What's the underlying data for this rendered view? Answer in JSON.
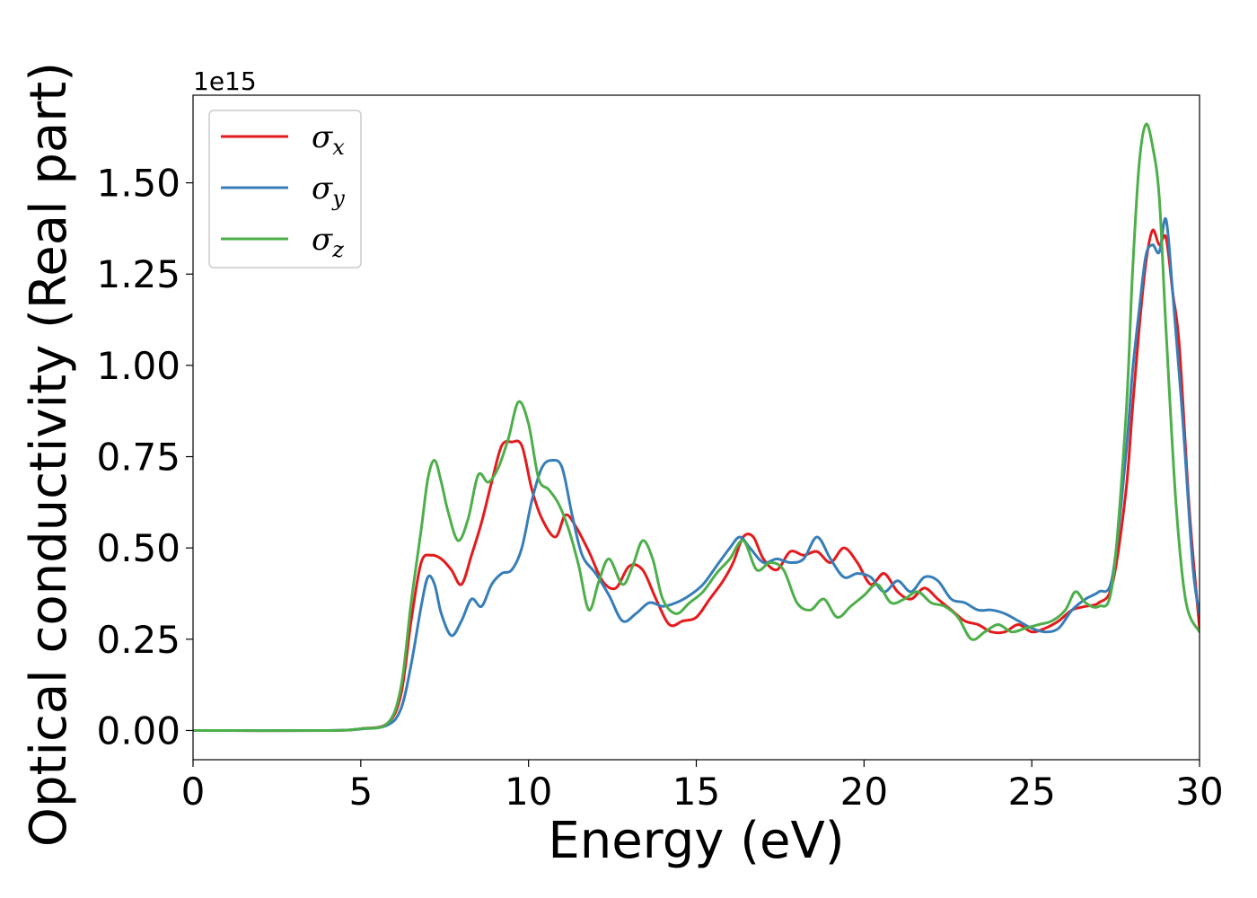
{
  "chart_data": {
    "type": "line",
    "xlabel": "Energy (eV)",
    "ylabel": "Optical conductivity (Real part)",
    "y_offset_text": "1e15",
    "xlim": [
      0,
      30
    ],
    "ylim": [
      -0.08,
      1.74
    ],
    "xticks": [
      0,
      5,
      10,
      15,
      20,
      25,
      30
    ],
    "xtick_labels": [
      "0",
      "5",
      "10",
      "15",
      "20",
      "25",
      "30"
    ],
    "yticks": [
      0.0,
      0.25,
      0.5,
      0.75,
      1.0,
      1.25,
      1.5
    ],
    "ytick_labels": [
      "0.00",
      "0.25",
      "0.50",
      "0.75",
      "1.00",
      "1.25",
      "1.50"
    ],
    "grid": false,
    "legend_position": "top-left",
    "series": [
      {
        "name": "σx",
        "symbol": "σ",
        "subscript": "x",
        "color": "#e41a1c",
        "x": [
          0,
          4,
          5,
          5.8,
          6.2,
          6.5,
          6.8,
          7.1,
          7.4,
          7.7,
          8.0,
          8.3,
          8.6,
          8.9,
          9.2,
          9.5,
          9.8,
          10.1,
          10.4,
          10.8,
          11.1,
          11.4,
          11.8,
          12.2,
          12.6,
          13.0,
          13.4,
          13.8,
          14.2,
          14.6,
          15.0,
          15.4,
          15.8,
          16.1,
          16.4,
          16.7,
          17.0,
          17.4,
          17.8,
          18.2,
          18.6,
          19.0,
          19.4,
          19.8,
          20.2,
          20.6,
          21.0,
          21.4,
          21.8,
          22.2,
          22.6,
          23.0,
          23.4,
          23.8,
          24.2,
          24.6,
          25.0,
          25.4,
          25.8,
          26.2,
          26.6,
          27.0,
          27.4,
          27.8,
          28.0,
          28.2,
          28.4,
          28.6,
          28.8,
          29.0,
          29.2,
          29.4,
          29.7,
          30.0
        ],
        "y": [
          0.0,
          0.0,
          0.005,
          0.02,
          0.1,
          0.3,
          0.46,
          0.48,
          0.47,
          0.44,
          0.4,
          0.48,
          0.57,
          0.68,
          0.78,
          0.79,
          0.78,
          0.66,
          0.58,
          0.53,
          0.59,
          0.56,
          0.49,
          0.41,
          0.39,
          0.45,
          0.44,
          0.36,
          0.29,
          0.3,
          0.31,
          0.36,
          0.41,
          0.46,
          0.53,
          0.53,
          0.47,
          0.44,
          0.49,
          0.48,
          0.49,
          0.46,
          0.5,
          0.46,
          0.4,
          0.43,
          0.38,
          0.36,
          0.39,
          0.36,
          0.33,
          0.3,
          0.29,
          0.27,
          0.27,
          0.29,
          0.27,
          0.28,
          0.3,
          0.33,
          0.34,
          0.35,
          0.4,
          0.65,
          0.88,
          1.1,
          1.28,
          1.37,
          1.33,
          1.35,
          1.2,
          1.05,
          0.6,
          0.28
        ]
      },
      {
        "name": "σy",
        "symbol": "σ",
        "subscript": "y",
        "color": "#377eb8",
        "x": [
          0,
          4,
          5,
          5.8,
          6.2,
          6.5,
          6.8,
          7.0,
          7.2,
          7.4,
          7.7,
          8.0,
          8.3,
          8.6,
          8.9,
          9.2,
          9.5,
          9.8,
          10.1,
          10.4,
          10.7,
          11.0,
          11.3,
          11.6,
          12.0,
          12.4,
          12.8,
          13.2,
          13.6,
          14.0,
          14.4,
          14.8,
          15.2,
          15.6,
          16.0,
          16.3,
          16.6,
          17.0,
          17.4,
          17.8,
          18.2,
          18.6,
          19.0,
          19.4,
          19.8,
          20.2,
          20.6,
          21.0,
          21.4,
          21.8,
          22.2,
          22.6,
          23.0,
          23.4,
          23.8,
          24.2,
          24.6,
          25.0,
          25.4,
          25.8,
          26.2,
          26.6,
          27.0,
          27.4,
          27.8,
          28.0,
          28.2,
          28.4,
          28.6,
          28.8,
          29.0,
          29.2,
          29.5,
          29.8,
          30.0
        ],
        "y": [
          0.0,
          0.0,
          0.004,
          0.015,
          0.06,
          0.18,
          0.34,
          0.42,
          0.4,
          0.32,
          0.26,
          0.3,
          0.36,
          0.34,
          0.4,
          0.43,
          0.44,
          0.5,
          0.63,
          0.72,
          0.74,
          0.72,
          0.59,
          0.48,
          0.43,
          0.37,
          0.3,
          0.32,
          0.35,
          0.34,
          0.35,
          0.37,
          0.4,
          0.45,
          0.5,
          0.53,
          0.5,
          0.46,
          0.47,
          0.46,
          0.47,
          0.53,
          0.47,
          0.42,
          0.43,
          0.42,
          0.38,
          0.41,
          0.38,
          0.42,
          0.41,
          0.36,
          0.35,
          0.33,
          0.33,
          0.32,
          0.3,
          0.28,
          0.27,
          0.28,
          0.33,
          0.36,
          0.38,
          0.42,
          0.75,
          0.98,
          1.15,
          1.3,
          1.33,
          1.31,
          1.4,
          1.2,
          0.85,
          0.45,
          0.32
        ]
      },
      {
        "name": "σz",
        "symbol": "σ",
        "subscript": "z",
        "color": "#4daf4a",
        "x": [
          0,
          4,
          5,
          5.8,
          6.2,
          6.5,
          6.8,
          7.0,
          7.2,
          7.4,
          7.6,
          7.9,
          8.2,
          8.5,
          8.8,
          9.1,
          9.4,
          9.7,
          10.0,
          10.3,
          10.6,
          10.9,
          11.2,
          11.5,
          11.8,
          12.1,
          12.4,
          12.8,
          13.1,
          13.4,
          13.7,
          14.0,
          14.4,
          14.8,
          15.2,
          15.6,
          16.0,
          16.4,
          16.8,
          17.2,
          17.6,
          18.0,
          18.4,
          18.8,
          19.2,
          19.6,
          20.0,
          20.4,
          20.8,
          21.2,
          21.6,
          22.0,
          22.4,
          22.8,
          23.2,
          23.6,
          24.0,
          24.4,
          24.8,
          25.2,
          25.6,
          26.0,
          26.3,
          26.6,
          27.0,
          27.4,
          27.8,
          28.0,
          28.2,
          28.4,
          28.6,
          28.8,
          29.0,
          29.3,
          29.6,
          30.0
        ],
        "y": [
          0.0,
          0.0,
          0.005,
          0.02,
          0.12,
          0.35,
          0.55,
          0.69,
          0.74,
          0.68,
          0.6,
          0.52,
          0.58,
          0.7,
          0.68,
          0.72,
          0.8,
          0.9,
          0.84,
          0.69,
          0.66,
          0.62,
          0.55,
          0.45,
          0.33,
          0.41,
          0.47,
          0.4,
          0.45,
          0.52,
          0.47,
          0.36,
          0.32,
          0.35,
          0.38,
          0.43,
          0.47,
          0.52,
          0.44,
          0.46,
          0.44,
          0.35,
          0.33,
          0.36,
          0.31,
          0.34,
          0.37,
          0.4,
          0.35,
          0.36,
          0.38,
          0.35,
          0.34,
          0.31,
          0.25,
          0.27,
          0.29,
          0.27,
          0.28,
          0.29,
          0.3,
          0.33,
          0.38,
          0.35,
          0.34,
          0.4,
          0.85,
          1.25,
          1.55,
          1.66,
          1.6,
          1.46,
          1.1,
          0.62,
          0.35,
          0.27
        ]
      }
    ]
  }
}
